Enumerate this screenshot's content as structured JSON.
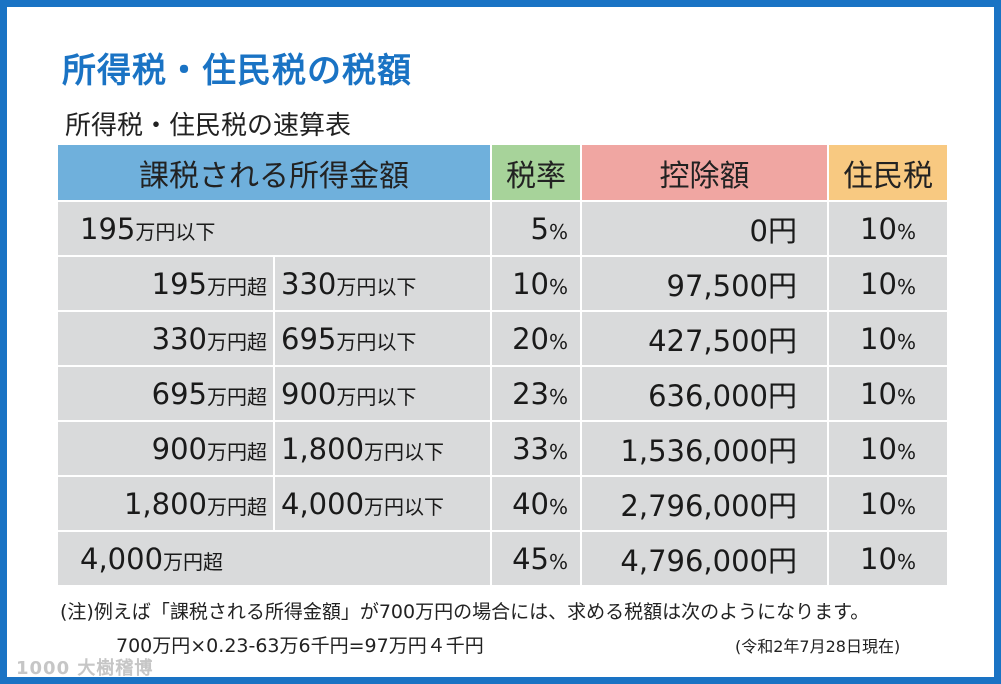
{
  "title": "所得税・住民税の税額",
  "subtitle": "所得税・住民税の速算表",
  "table": {
    "headers": {
      "income": "課税される所得金額",
      "rate": "税率",
      "deduction": "控除額",
      "resident": "住民税"
    },
    "rows": [
      {
        "lower_num": "195",
        "lower_unit": "万円以下",
        "upper_num": "",
        "upper_unit": "",
        "rate_num": "5",
        "rate_unit": "%",
        "deduction": "0円",
        "resident_num": "10",
        "resident_unit": "%"
      },
      {
        "lower_num": "195",
        "lower_unit": "万円超",
        "upper_num": "330",
        "upper_unit": "万円以下",
        "rate_num": "10",
        "rate_unit": "%",
        "deduction": "97,500円",
        "resident_num": "10",
        "resident_unit": "%"
      },
      {
        "lower_num": "330",
        "lower_unit": "万円超",
        "upper_num": "695",
        "upper_unit": "万円以下",
        "rate_num": "20",
        "rate_unit": "%",
        "deduction": "427,500円",
        "resident_num": "10",
        "resident_unit": "%"
      },
      {
        "lower_num": "695",
        "lower_unit": "万円超",
        "upper_num": "900",
        "upper_unit": "万円以下",
        "rate_num": "23",
        "rate_unit": "%",
        "deduction": "636,000円",
        "resident_num": "10",
        "resident_unit": "%"
      },
      {
        "lower_num": "900",
        "lower_unit": "万円超",
        "upper_num": "1,800",
        "upper_unit": "万円以下",
        "rate_num": "33",
        "rate_unit": "%",
        "deduction": "1,536,000円",
        "resident_num": "10",
        "resident_unit": "%"
      },
      {
        "lower_num": "1,800",
        "lower_unit": "万円超",
        "upper_num": "4,000",
        "upper_unit": "万円以下",
        "rate_num": "40",
        "rate_unit": "%",
        "deduction": "2,796,000円",
        "resident_num": "10",
        "resident_unit": "%"
      },
      {
        "lower_num": "4,000",
        "lower_unit": "万円超",
        "upper_num": "",
        "upper_unit": "",
        "rate_num": "45",
        "rate_unit": "%",
        "deduction": "4,796,000円",
        "resident_num": "10",
        "resident_unit": "%"
      }
    ]
  },
  "notes": {
    "line1": "(注)例えば「課税される所得金額」が700万円の場合には、求める税額は次のようになります。",
    "line2": "700万円×0.23-63万6千円=97万円４千円",
    "as_of": "(令和2年7月28日現在)"
  },
  "watermark": "1000 大樹稽博"
}
